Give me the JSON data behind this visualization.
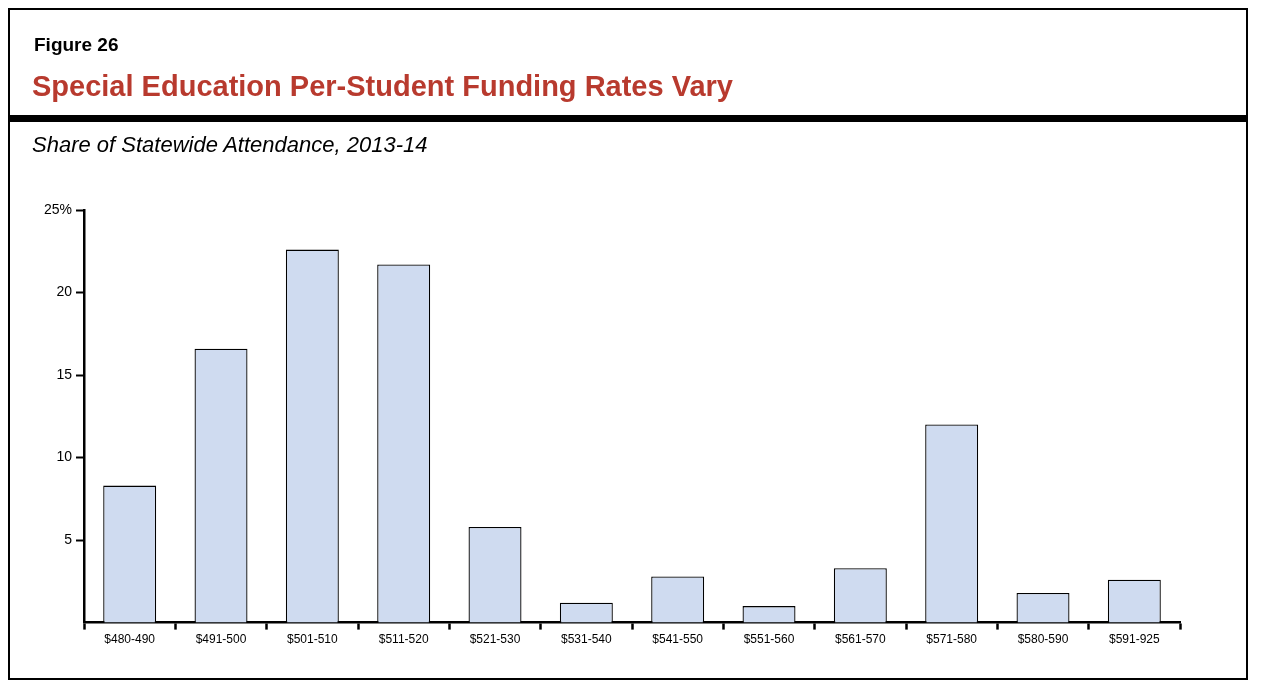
{
  "chart_data": {
    "type": "bar",
    "title": "Special Education Per-Student Funding Rates Vary",
    "subtitle": "Share of Statewide Attendance, 2013-14",
    "annotations": [
      "Figure 26"
    ],
    "categories": [
      "$480-490",
      "$491-500",
      "$501-510",
      "$511-520",
      "$521-530",
      "$531-540",
      "$541-550",
      "$551-560",
      "$561-570",
      "$571-580",
      "$580-590",
      "$591-925"
    ],
    "values": [
      8.3,
      16.6,
      22.6,
      21.7,
      5.8,
      1.2,
      2.8,
      1.0,
      3.3,
      12.0,
      1.8,
      2.6
    ],
    "color": "#cfdbf0",
    "ylim": [
      0,
      25
    ],
    "yticks": [
      5,
      10,
      15,
      20,
      {
        "value": 25,
        "label": "25%"
      }
    ],
    "grid": false,
    "legend": false
  }
}
